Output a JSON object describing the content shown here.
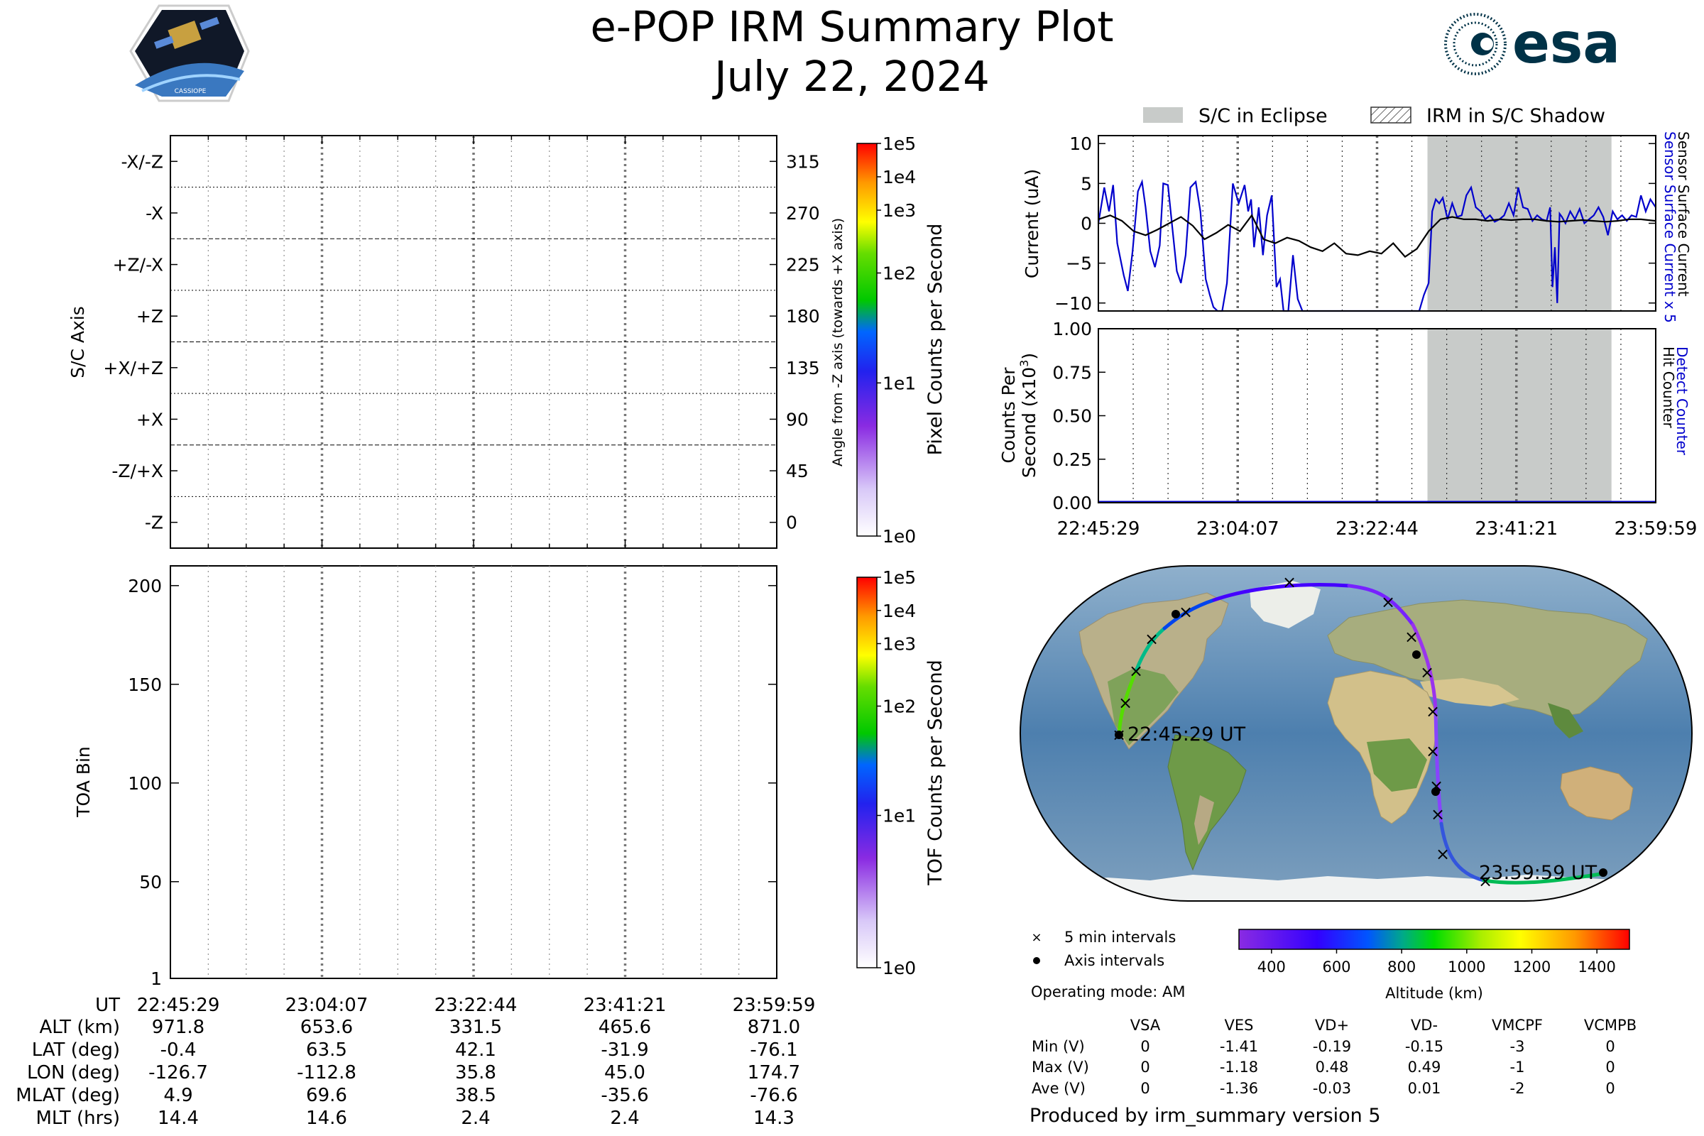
{
  "title": "e-POP IRM Summary Plot",
  "date": "July 22, 2024",
  "logo_left": "CASSIOPE",
  "logo_right": "esa",
  "colors": {
    "esa_blue": "#003247",
    "current_line": "#0000cc",
    "eclipse_fill": "#c8cbc9",
    "axis": "#000000"
  },
  "sc_axis_panel": {
    "ylabel": "S/C Axis",
    "left_ticks": [
      "-X/-Z",
      "-X",
      "+Z/-X",
      "+Z",
      "+X/+Z",
      "+X",
      "-Z/+X",
      "-Z"
    ],
    "right_ticks": [
      "315",
      "270",
      "225",
      "180",
      "135",
      "90",
      "45",
      "0"
    ],
    "right_label": "Angle from -Z axis (towards +X axis)",
    "colorbar_label": "Pixel Counts per Second",
    "colorbar_ticks": [
      "1e5",
      "1e4",
      "1e3",
      "1e2",
      "1e1",
      "1e0"
    ]
  },
  "toa_panel": {
    "ylabel": "TOA Bin",
    "ticks": [
      "200",
      "150",
      "100",
      "50",
      "1"
    ],
    "colorbar_label": "TOF Counts per Second",
    "colorbar_ticks": [
      "1e5",
      "1e4",
      "1e3",
      "1e2",
      "1e1",
      "1e0"
    ]
  },
  "legend": {
    "eclipse": "S/C in Eclipse",
    "shadow": "IRM in S/C Shadow"
  },
  "chart_data": [
    {
      "type": "line",
      "name": "current_panel",
      "ylabel": "Current (uA)",
      "right_label_1": "Sensor Surface Current x 5",
      "right_label_2": "Sensor Surface Current",
      "ylim": [
        -11,
        11
      ],
      "yticks": [
        "10",
        "5",
        "0",
        "−5",
        "−10"
      ],
      "xticks": [
        "22:45:29",
        "23:04:07",
        "23:22:44",
        "23:41:21",
        "23:59:59"
      ],
      "eclipse_interval_min": [
        55.8,
        87.0
      ],
      "series": [
        {
          "name": "Sensor Surface Current x 5",
          "color": "#0000cc",
          "x": [
            0,
            1,
            1.8,
            2.5,
            3.2,
            4.3,
            5.0,
            5.8,
            6.7,
            7.4,
            8.0,
            8.8,
            9.6,
            10.4,
            11.0,
            11.8,
            12.6,
            13.3,
            14.0,
            14.8,
            15.6,
            16.5,
            17.3,
            18.2,
            18.9,
            19.5,
            20.2,
            21.0,
            21.8,
            22.8,
            23.8,
            24.8,
            25.4,
            25.9,
            26.4,
            27.2,
            27.9,
            28.6,
            29.4,
            30.2,
            30.8,
            31.4,
            32.2,
            33.0,
            33.8,
            34.6,
            35.4,
            36.2,
            37.0,
            37.5,
            38.5,
            39.3,
            40.0,
            40.8,
            41.6,
            42.4,
            43.2,
            44.0,
            44.8,
            45.6,
            46.4,
            47.2,
            48.0,
            48.8,
            49.6,
            50.4,
            51.2,
            52.0,
            52.8,
            53.6,
            54.4,
            55.2,
            56.0,
            56.6,
            57.2,
            57.8,
            58.4,
            59.2,
            60.0,
            60.8,
            61.6,
            62.4,
            63.2,
            64.0,
            64.8,
            65.6,
            66.4,
            67.2,
            68.0,
            68.8,
            69.6,
            70.4,
            71.2,
            72.0,
            72.8,
            73.6,
            74.4,
            75.2,
            76.0,
            76.6,
            77.0,
            77.4,
            77.8,
            78.2,
            78.6,
            79.2,
            80.0,
            80.8,
            81.6,
            82.4,
            83.2,
            84.0,
            84.8,
            85.6,
            86.4,
            87.2,
            88.0,
            88.8,
            89.6,
            90.4,
            91.2,
            92.0,
            92.8,
            93.6,
            94.5
          ],
          "y": [
            0,
            4.5,
            1.5,
            4.8,
            -2.5,
            -6.5,
            -8.5,
            -3.5,
            4.0,
            5.2,
            2.0,
            -3.5,
            -5.5,
            -2.8,
            5.0,
            4.8,
            -1.0,
            -6.0,
            -7.5,
            -4.0,
            4.5,
            5.2,
            1.5,
            -7.0,
            -9.0,
            -10.5,
            -11.5,
            -11.5,
            -7.5,
            5.0,
            2.5,
            4.8,
            1.5,
            3.0,
            -3.0,
            2.0,
            -4.0,
            1.0,
            3.5,
            -8.0,
            -7.0,
            -11.5,
            -11.5,
            -4.0,
            -9.5,
            -11.0,
            -11.5,
            -11.5,
            -11.5,
            -11.5,
            -11.5,
            -11.5,
            -11.5,
            -11.5,
            -11.5,
            -11.5,
            -11.5,
            -11.5,
            -11.5,
            -11.5,
            -11.5,
            -11.5,
            -11.5,
            -11.5,
            -11.5,
            -11.5,
            -11.5,
            -11.5,
            -11.5,
            -11.5,
            -11.5,
            -9.0,
            -7.5,
            1.5,
            3.0,
            2.5,
            3.2,
            0.5,
            2.5,
            0.8,
            1.0,
            3.5,
            4.5,
            2.0,
            1.5,
            0.5,
            1.0,
            0.2,
            0.5,
            1.0,
            2.5,
            1.0,
            4.5,
            2.0,
            1.8,
            0.3,
            1.0,
            0.5,
            0.3,
            2.0,
            -8.0,
            -3.0,
            -10.0,
            1.2,
            0.8,
            0.0,
            1.5,
            0.5,
            1.8,
            0.0,
            0.5,
            1.0,
            2.0,
            0.8,
            -1.5,
            1.5,
            0.5,
            1.0,
            0.3,
            1.0,
            0.8,
            3.5,
            1.5,
            3.0,
            2.0
          ]
        },
        {
          "name": "Sensor Surface Current",
          "color": "#000000",
          "x": [
            0,
            2,
            4,
            6,
            8,
            10,
            12,
            14,
            16,
            18,
            20,
            22,
            24,
            26,
            28,
            30,
            32,
            34,
            36,
            38,
            40,
            42,
            44,
            46,
            48,
            50,
            52,
            54,
            56,
            58,
            60,
            62,
            64,
            66,
            68,
            70,
            72,
            74,
            76,
            78,
            80,
            82,
            84,
            86,
            88,
            90,
            92,
            94.5
          ],
          "y": [
            0.5,
            1.0,
            0.3,
            -1.0,
            -1.5,
            -0.8,
            0.0,
            0.8,
            -0.3,
            -2.0,
            -1.2,
            -0.2,
            -1.0,
            1.0,
            -2.0,
            -2.5,
            -1.8,
            -2.2,
            -3.0,
            -3.5,
            -2.5,
            -3.8,
            -4.0,
            -3.5,
            -3.8,
            -2.5,
            -4.2,
            -3.2,
            -1.0,
            0.5,
            0.8,
            0.5,
            0.5,
            0.3,
            0.5,
            0.4,
            0.5,
            0.5,
            0.3,
            0.2,
            0.3,
            0.4,
            0.3,
            0.2,
            0.3,
            0.5,
            0.5,
            0.3
          ]
        }
      ]
    },
    {
      "type": "line",
      "name": "counts_panel",
      "ylabel_1": "Counts Per",
      "ylabel_2": "Second (x10",
      "ylabel_sup": "3",
      "right_label_1": "Detect Counter",
      "right_label_2": "Hit Counter",
      "ylim": [
        0,
        1
      ],
      "yticks": [
        "1.00",
        "0.75",
        "0.50",
        "0.25",
        "0.00"
      ],
      "xticks": [
        "22:45:29",
        "23:04:07",
        "23:22:44",
        "23:41:21",
        "23:59:59"
      ],
      "series": [
        {
          "name": "Detect Counter",
          "color": "#0000cc",
          "x": [
            0,
            94.5
          ],
          "y": [
            0,
            0
          ]
        }
      ]
    }
  ],
  "ut_table": {
    "rows": [
      {
        "label": "UT",
        "values": [
          "22:45:29",
          "23:04:07",
          "23:22:44",
          "23:41:21",
          "23:59:59"
        ]
      },
      {
        "label": "ALT (km)",
        "values": [
          "971.8",
          "653.6",
          "331.5",
          "465.6",
          "871.0"
        ]
      },
      {
        "label": "LAT (deg)",
        "values": [
          "-0.4",
          "63.5",
          "42.1",
          "-31.9",
          "-76.1"
        ]
      },
      {
        "label": "LON (deg)",
        "values": [
          "-126.7",
          "-112.8",
          "35.8",
          "45.0",
          "174.7"
        ]
      },
      {
        "label": "MLAT (deg)",
        "values": [
          "4.9",
          "69.6",
          "38.5",
          "-35.6",
          "-76.6"
        ]
      },
      {
        "label": "MLT (hrs)",
        "values": [
          "14.4",
          "14.6",
          "2.4",
          "2.4",
          "14.3"
        ]
      }
    ]
  },
  "map": {
    "start_label": "22:45:29 UT",
    "end_label": "23:59:59 UT",
    "legend_5min": "5 min intervals",
    "legend_axis": "Axis intervals",
    "operating_mode": "Operating mode: AM",
    "altitude_label": "Altitude (km)",
    "altitude_ticks": [
      "400",
      "600",
      "800",
      "1000",
      "1200",
      "1400"
    ],
    "altitude_range": [
      300,
      1500
    ]
  },
  "voltage_table": {
    "headers": [
      "VSA",
      "VES",
      "VD+",
      "VD-",
      "VMCPF",
      "VCMPB"
    ],
    "rows": [
      {
        "label": "Min (V)",
        "values": [
          "0",
          "-1.41",
          "-0.19",
          "-0.15",
          "-3",
          "0"
        ]
      },
      {
        "label": "Max (V)",
        "values": [
          "0",
          "-1.18",
          "0.48",
          "0.49",
          "-1",
          "0"
        ]
      },
      {
        "label": "Ave (V)",
        "values": [
          "0",
          "-1.36",
          "-0.03",
          "0.01",
          "-2",
          "0"
        ]
      }
    ]
  },
  "footer": "Produced by irm_summary version 5"
}
